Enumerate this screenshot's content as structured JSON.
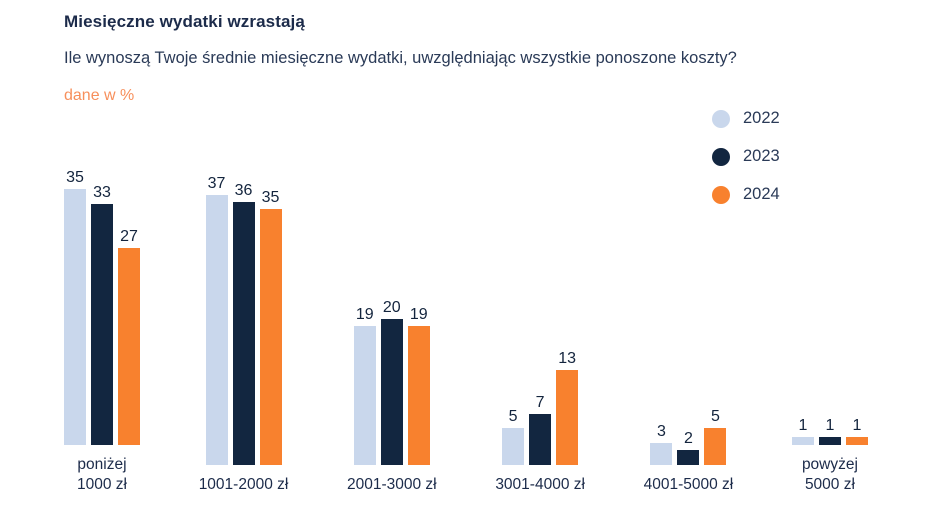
{
  "header": {
    "title": "Miesięczne wydatki wzrastają",
    "subtitle": "Ile wynoszą Twoje średnie miesięczne wydatki, uwzględniając wszystkie ponoszone koszty?",
    "unit_note": "dane w %"
  },
  "colors": {
    "series_2022": "#c9d7ec",
    "series_2023": "#122640",
    "series_2024": "#f8812e",
    "unit_note_text": "#f78f5b",
    "title_text": "#1c2b4a",
    "value_label_text": "#13243d",
    "background": "#ffffff"
  },
  "legend": {
    "position": "right",
    "items": [
      {
        "label": "2022",
        "color": "#c9d7ec"
      },
      {
        "label": "2023",
        "color": "#122640"
      },
      {
        "label": "2024",
        "color": "#f8812e"
      }
    ]
  },
  "chart_data": {
    "type": "bar",
    "title": "Miesięczne wydatki wzrastają",
    "subtitle": "Ile wynoszą Twoje średnie miesięczne wydatki, uwzględniając wszystkie ponoszone koszty?",
    "unit": "%",
    "categories": [
      "poniżej\n1000 zł",
      "1001-2000 zł",
      "2001-3000 zł",
      "3001-4000 zł",
      "4001-5000 zł",
      "powyżej\n5000 zł"
    ],
    "series": [
      {
        "name": "2022",
        "color": "#c9d7ec",
        "values": [
          35,
          37,
          19,
          5,
          3,
          1
        ]
      },
      {
        "name": "2023",
        "color": "#122640",
        "values": [
          33,
          36,
          20,
          7,
          2,
          1
        ]
      },
      {
        "name": "2024",
        "color": "#f8812e",
        "values": [
          27,
          35,
          19,
          13,
          5,
          1
        ]
      }
    ],
    "value_labels": true,
    "axes_visible": false,
    "grid": false,
    "legend_position": "top-right",
    "ylim": [
      0,
      40
    ]
  }
}
